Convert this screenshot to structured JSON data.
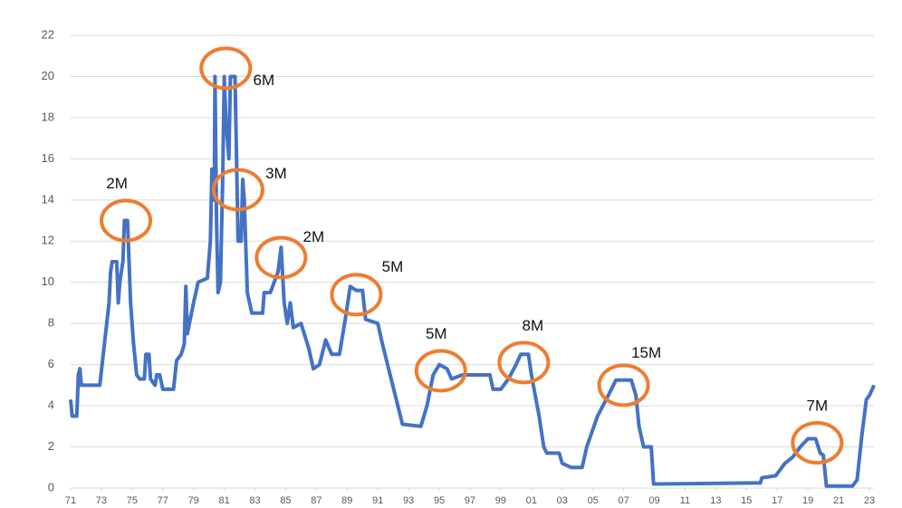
{
  "chart_data": {
    "type": "line",
    "x": [
      1971.0,
      1971.1,
      1971.4,
      1971.5,
      1971.6,
      1971.7,
      1972.9,
      1973.2,
      1973.5,
      1973.6,
      1973.7,
      1974.0,
      1974.1,
      1974.2,
      1974.4,
      1974.5,
      1974.7,
      1974.9,
      1975.1,
      1975.3,
      1975.5,
      1975.8,
      1975.9,
      1976.1,
      1976.2,
      1976.5,
      1976.6,
      1976.8,
      1977.0,
      1977.7,
      1977.9,
      1978.2,
      1978.4,
      1978.5,
      1978.6,
      1979.0,
      1979.3,
      1979.9,
      1980.1,
      1980.2,
      1980.35,
      1980.4,
      1980.5,
      1980.6,
      1980.75,
      1980.9,
      1981.0,
      1981.1,
      1981.3,
      1981.4,
      1981.7,
      1981.8,
      1981.9,
      1982.1,
      1982.2,
      1982.3,
      1982.5,
      1982.8,
      1983.5,
      1983.6,
      1984.0,
      1984.5,
      1984.7,
      1984.9,
      1985.1,
      1985.3,
      1985.5,
      1986.0,
      1986.5,
      1986.8,
      1987.2,
      1987.6,
      1988.0,
      1988.5,
      1988.9,
      1989.2,
      1989.6,
      1990.0,
      1990.2,
      1991.0,
      1991.3,
      1991.8,
      1992.2,
      1992.6,
      1993.8,
      1994.2,
      1994.6,
      1995.0,
      1995.5,
      1995.8,
      1996.5,
      1997.5,
      1998.3,
      1998.5,
      1999.0,
      1999.5,
      2000.0,
      2000.3,
      2000.8,
      2001.0,
      2001.5,
      2001.8,
      2002.0,
      2002.8,
      2003.0,
      2003.6,
      2004.3,
      2004.6,
      2005.3,
      2006.0,
      2006.5,
      2007.5,
      2007.8,
      2008.0,
      2008.3,
      2008.8,
      2008.95,
      2015.9,
      2016.0,
      2016.9,
      2017.5,
      2018.0,
      2018.5,
      2019.0,
      2019.5,
      2019.8,
      2020.0,
      2020.2,
      2021.9,
      2022.2,
      2022.5,
      2022.8,
      2023.0,
      2023.3
    ],
    "series": [
      {
        "color": "#4472c4",
        "values": [
          4.3,
          3.5,
          3.5,
          5.5,
          5.8,
          5.0,
          5.0,
          7,
          9,
          10.5,
          11,
          11,
          9,
          10,
          11,
          13,
          13,
          9,
          7,
          5.5,
          5.3,
          5.3,
          6.5,
          6.5,
          5.3,
          5,
          5.5,
          5.5,
          4.8,
          4.8,
          6.2,
          6.5,
          7,
          9.8,
          7.5,
          9,
          10,
          10.2,
          12,
          15.5,
          14,
          20,
          13,
          9.5,
          10,
          15,
          20,
          18,
          16,
          20,
          20,
          16,
          12,
          12,
          15,
          14,
          9.5,
          8.5,
          8.5,
          9.5,
          9.5,
          10.5,
          11.7,
          9,
          8,
          9,
          7.8,
          8,
          6.8,
          5.8,
          6,
          7.2,
          6.5,
          6.5,
          8.3,
          9.8,
          9.6,
          9.6,
          8.2,
          8,
          7,
          5.5,
          4.3,
          3.1,
          3,
          4,
          5.5,
          6,
          5.8,
          5.3,
          5.5,
          5.5,
          5.5,
          4.8,
          4.8,
          5.3,
          6.0,
          6.5,
          6.5,
          5.5,
          3.5,
          2.0,
          1.7,
          1.7,
          1.2,
          1.0,
          1.0,
          2.0,
          3.5,
          4.5,
          5.25,
          5.25,
          4.5,
          3.0,
          2.0,
          2.0,
          0.2,
          0.25,
          0.5,
          0.6,
          1.2,
          1.5,
          2.0,
          2.4,
          2.4,
          1.7,
          1.6,
          0.1,
          0.1,
          0.4,
          2.5,
          4.3,
          4.5,
          5.0
        ]
      }
    ],
    "xlim": [
      1970.6,
      2023.3
    ],
    "xticks": [
      {
        "value": 1971,
        "label": "71"
      },
      {
        "value": 1973,
        "label": "73"
      },
      {
        "value": 1975,
        "label": "75"
      },
      {
        "value": 1977,
        "label": "77"
      },
      {
        "value": 1979,
        "label": "79"
      },
      {
        "value": 1981,
        "label": "81"
      },
      {
        "value": 1983,
        "label": "83"
      },
      {
        "value": 1985,
        "label": "85"
      },
      {
        "value": 1987,
        "label": "87"
      },
      {
        "value": 1989,
        "label": "89"
      },
      {
        "value": 1991,
        "label": "91"
      },
      {
        "value": 1993,
        "label": "93"
      },
      {
        "value": 1995,
        "label": "95"
      },
      {
        "value": 1997,
        "label": "97"
      },
      {
        "value": 1999,
        "label": "99"
      },
      {
        "value": 2001,
        "label": "01"
      },
      {
        "value": 2003,
        "label": "03"
      },
      {
        "value": 2005,
        "label": "05"
      },
      {
        "value": 2007,
        "label": "07"
      },
      {
        "value": 2009,
        "label": "09"
      },
      {
        "value": 2011,
        "label": "11"
      },
      {
        "value": 2013,
        "label": "13"
      },
      {
        "value": 2015,
        "label": "15"
      },
      {
        "value": 2017,
        "label": "17"
      },
      {
        "value": 2019,
        "label": "19"
      },
      {
        "value": 2021,
        "label": "21"
      },
      {
        "value": 2023,
        "label": "23"
      }
    ],
    "ylim": [
      0,
      22
    ],
    "yticks": [
      0,
      2,
      4,
      6,
      8,
      10,
      12,
      14,
      16,
      18,
      20,
      22
    ],
    "grid": true,
    "annotation_color": "#ed7d31",
    "annotations": [
      {
        "text": "2M",
        "x": 1974.6,
        "y": 13
      },
      {
        "text": "6M",
        "x": 1981.1,
        "y": 20.4
      },
      {
        "text": "3M",
        "x": 1981.9,
        "y": 14.5
      },
      {
        "text": "2M",
        "x": 1984.7,
        "y": 11.2
      },
      {
        "text": "5M",
        "x": 1989.6,
        "y": 9.4
      },
      {
        "text": "5M",
        "x": 1995.1,
        "y": 5.7
      },
      {
        "text": "8M",
        "x": 2000.5,
        "y": 6.1
      },
      {
        "text": "15M",
        "x": 2007.0,
        "y": 5.0
      },
      {
        "text": "7M",
        "x": 2019.6,
        "y": 2.2
      }
    ]
  }
}
